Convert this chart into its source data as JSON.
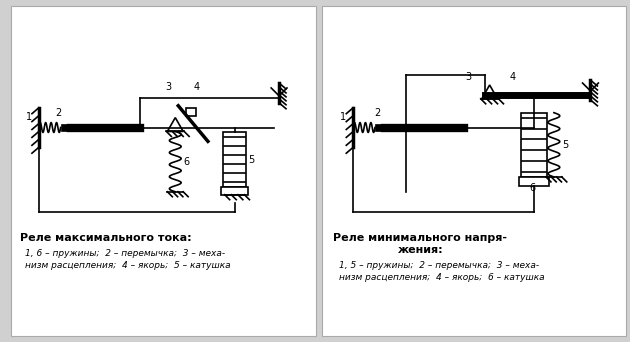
{
  "bg_color": "#d0d0d0",
  "diagram_bg": "#ffffff",
  "line_color": "#000000",
  "title1": "Реле максимального тока:",
  "desc1_line1": "1, 6 – пружины;  2 – перемычка;  3 – меха-",
  "desc1_line2": "низм расцепления;  4 – якорь;  5 – катушка",
  "title2_line1": "Реле минимального напря-",
  "title2_line2": "жения:",
  "desc2_line1": "1, 5 – пружины;  2 – перемычка;  3 – меха-",
  "desc2_line2": "низм расцепления;  4 – якорь;  6 – катушка",
  "border_color": "#999999"
}
